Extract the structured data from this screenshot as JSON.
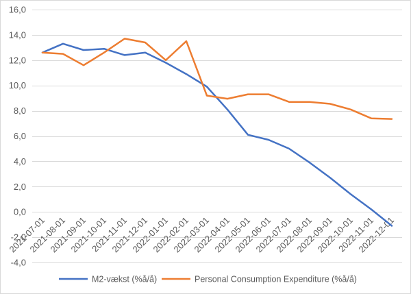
{
  "chart_data": {
    "type": "line",
    "categories": [
      "2021-07-01",
      "2021-08-01",
      "2021-09-01",
      "2021-10-01",
      "2021-11-01",
      "2021-12-01",
      "2022-01-01",
      "2022-02-01",
      "2022-03-01",
      "2022-04-01",
      "2022-05-01",
      "2022-06-01",
      "2022-07-01",
      "2022-08-01",
      "2022-09-01",
      "2022-10-01",
      "2022-11-01",
      "2022-12-01"
    ],
    "series": [
      {
        "name": "M2-vækst (%å/å)",
        "color": "#4472c4",
        "values": [
          12.6,
          13.3,
          12.8,
          12.9,
          12.4,
          12.6,
          11.8,
          10.9,
          9.9,
          8.1,
          6.1,
          5.7,
          5.0,
          3.9,
          2.7,
          1.4,
          0.2,
          -1.1
        ]
      },
      {
        "name": "Personal Consumption Expenditure (%å/å)",
        "color": "#ed7d31",
        "values": [
          12.6,
          12.5,
          11.6,
          12.6,
          13.7,
          13.4,
          12.0,
          13.5,
          9.2,
          8.95,
          9.3,
          9.3,
          8.7,
          8.7,
          8.55,
          8.1,
          7.4,
          7.35
        ]
      }
    ],
    "ylim": [
      -4,
      16
    ],
    "y_ticks": [
      16,
      14,
      12,
      10,
      8,
      6,
      4,
      2,
      0,
      -2,
      -4
    ],
    "y_tick_labels": [
      "16,0",
      "14,0",
      "12,0",
      "10,0",
      "8,0",
      "6,0",
      "4,0",
      "2,0",
      "0,0",
      "-2,0",
      "-4,0"
    ],
    "grid": true,
    "legend": "bottom"
  }
}
